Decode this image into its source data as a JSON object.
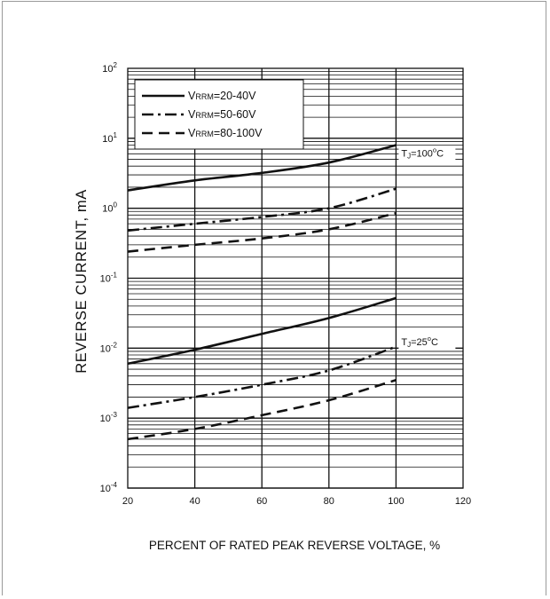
{
  "chart_data": {
    "type": "line",
    "xlabel": "PERCENT OF RATED PEAK REVERSE VOLTAGE, %",
    "ylabel": "REVERSE CURRENT, mA",
    "xlim": [
      20,
      120
    ],
    "ylim": [
      0.0001,
      100
    ],
    "yscale": "log",
    "grid": true,
    "x_ticks": [
      "20",
      "40",
      "60",
      "80",
      "100",
      "120"
    ],
    "y_ticks": [
      {
        "base": "10",
        "exp": "-4"
      },
      {
        "base": "10",
        "exp": "-3"
      },
      {
        "base": "10",
        "exp": "-2"
      },
      {
        "base": "10",
        "exp": "-1"
      },
      {
        "base": "10",
        "exp": "0"
      },
      {
        "base": "10",
        "exp": "1"
      },
      {
        "base": "10",
        "exp": "2"
      }
    ],
    "legend_position": "top-left",
    "series": [
      {
        "name": "VRRM=20-40V",
        "sub": "RRM",
        "main": "V",
        "rest": "=20-40V",
        "style": "solid",
        "groups": [
          {
            "condition": "TJ=100°C",
            "x": [
              20,
              40,
              60,
              80,
              100
            ],
            "y": [
              1.8,
              2.5,
              3.2,
              4.5,
              8.0
            ]
          },
          {
            "condition": "TJ=25°C",
            "x": [
              20,
              40,
              60,
              80,
              100
            ],
            "y": [
              0.006,
              0.0095,
              0.016,
              0.027,
              0.052
            ]
          }
        ]
      },
      {
        "name": "VRRM=50-60V",
        "sub": "RRM",
        "main": "V",
        "rest": "=50-60V",
        "style": "dashdot",
        "groups": [
          {
            "condition": "TJ=100°C",
            "x": [
              20,
              40,
              60,
              80,
              100
            ],
            "y": [
              0.48,
              0.6,
              0.75,
              1.0,
              1.9
            ]
          },
          {
            "condition": "TJ=25°C",
            "x": [
              20,
              40,
              60,
              80,
              100
            ],
            "y": [
              0.0014,
              0.002,
              0.003,
              0.0048,
              0.0105
            ]
          }
        ]
      },
      {
        "name": "VRRM=80-100V",
        "sub": "RRM",
        "main": "V",
        "rest": "=80-100V",
        "style": "dashed",
        "groups": [
          {
            "condition": "TJ=100°C",
            "x": [
              20,
              40,
              60,
              80,
              100
            ],
            "y": [
              0.24,
              0.3,
              0.37,
              0.5,
              0.85
            ]
          },
          {
            "condition": "TJ=25°C",
            "x": [
              20,
              40,
              60,
              80,
              100
            ],
            "y": [
              0.0005,
              0.0007,
              0.0011,
              0.0018,
              0.0035
            ]
          }
        ]
      }
    ],
    "annotations": [
      {
        "label": "TJ=100°C",
        "main": "T",
        "sub": "J",
        "rest_pre": "=100",
        "sup": "o",
        "rest_post": "C",
        "at_x": 100,
        "at_y": 6.0
      },
      {
        "label": "TJ=25°C",
        "main": "T",
        "sub": "J",
        "rest_pre": "=25",
        "sup": "o",
        "rest_post": "C",
        "at_x": 100,
        "at_y": 0.012
      }
    ]
  }
}
